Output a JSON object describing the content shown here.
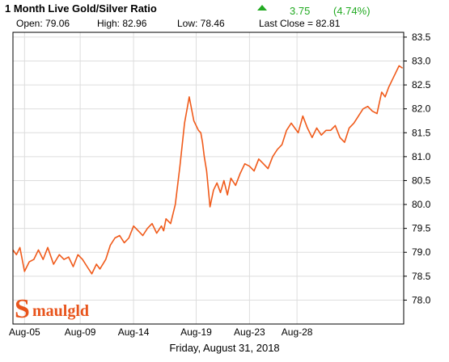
{
  "header": {
    "title": "1 Month Live Gold/Silver Ratio",
    "change_value": "3.75",
    "change_pct": "(4.74%)",
    "open": "Open: 79.06",
    "high": "High: 82.96",
    "low": "Low: 78.46",
    "last_close": "Last Close = 82.81"
  },
  "colors": {
    "line": "#f05a1a",
    "grid": "#dddddd",
    "up": "#22aa22",
    "logo": "#e8541c"
  },
  "logo": {
    "text": "Smaulgld"
  },
  "footer": {
    "date": "Friday, August 31, 2018"
  },
  "chart_data": {
    "type": "line",
    "x": [
      0,
      0.3,
      0.6,
      1.0,
      1.4,
      1.8,
      2.2,
      2.6,
      3.0,
      3.5,
      4.0,
      4.4,
      4.8,
      5.2,
      5.6,
      6.0,
      6.4,
      6.8,
      7.2,
      7.5,
      8.0,
      8.4,
      8.8,
      9.2,
      9.6,
      10.0,
      10.4,
      10.8,
      11.2,
      11.6,
      12.0,
      12.4,
      12.8,
      13.0,
      13.2,
      13.6,
      14.0,
      14.4,
      14.8,
      15.2,
      15.6,
      16.0,
      16.2,
      16.35,
      16.5,
      16.7,
      17.0,
      17.3,
      17.6,
      17.9,
      18.2,
      18.5,
      18.8,
      19.2,
      19.6,
      20.0,
      20.4,
      20.8,
      21.2,
      21.6,
      22.0,
      22.4,
      22.8,
      23.2,
      23.6,
      24.0,
      24.3,
      24.6,
      25.0,
      25.4,
      25.8,
      26.2,
      26.6,
      27.0,
      27.4,
      27.8,
      28.2,
      28.6,
      29.0,
      29.4,
      29.8,
      30.2,
      30.6,
      31.0,
      31.4,
      31.8,
      32.1,
      32.4,
      32.7,
      33.0,
      33.3,
      33.6
    ],
    "values": [
      79.05,
      78.95,
      79.1,
      78.6,
      78.8,
      78.85,
      79.05,
      78.85,
      79.1,
      78.75,
      78.95,
      78.85,
      78.9,
      78.7,
      78.95,
      78.85,
      78.7,
      78.55,
      78.75,
      78.65,
      78.85,
      79.15,
      79.3,
      79.35,
      79.2,
      79.3,
      79.55,
      79.45,
      79.35,
      79.5,
      79.6,
      79.4,
      79.55,
      79.45,
      79.7,
      79.6,
      80.0,
      80.8,
      81.7,
      82.25,
      81.75,
      81.55,
      81.5,
      81.3,
      81.0,
      80.7,
      79.95,
      80.3,
      80.45,
      80.25,
      80.5,
      80.2,
      80.55,
      80.4,
      80.65,
      80.85,
      80.8,
      80.7,
      80.95,
      80.85,
      80.75,
      81.0,
      81.15,
      81.25,
      81.55,
      81.7,
      81.6,
      81.5,
      81.85,
      81.6,
      81.4,
      81.6,
      81.45,
      81.55,
      81.55,
      81.65,
      81.4,
      81.3,
      81.6,
      81.7,
      81.85,
      82.0,
      82.05,
      81.95,
      81.9,
      82.35,
      82.25,
      82.45,
      82.6,
      82.75,
      82.9,
      82.85
    ],
    "xtick_positions": [
      1.0,
      5.8,
      10.4,
      15.8,
      20.4,
      24.5
    ],
    "xtick_labels": [
      "Aug-05",
      "Aug-09",
      "Aug-14",
      "Aug-19",
      "Aug-23",
      "Aug-28"
    ],
    "yticks": [
      78.0,
      78.5,
      79.0,
      79.5,
      80.0,
      80.5,
      81.0,
      81.5,
      82.0,
      82.5,
      83.0,
      83.5
    ],
    "ylim": [
      77.5,
      83.6
    ],
    "xlim": [
      0,
      33.7
    ],
    "grid": true,
    "y_axis_side": "right"
  }
}
